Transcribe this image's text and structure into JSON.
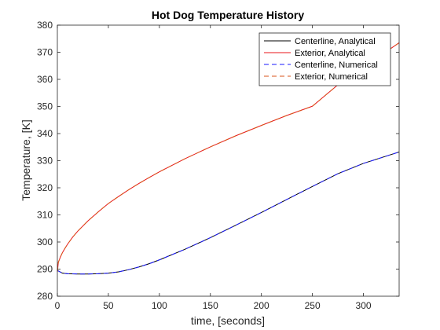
{
  "chart_data": {
    "type": "line",
    "title": "Hot Dog Temperature History",
    "xlabel": "time, [seconds]",
    "ylabel": "Temperature, [K]",
    "xlim": [
      0,
      335
    ],
    "ylim": [
      280,
      380
    ],
    "xticks": [
      0,
      50,
      100,
      150,
      200,
      250,
      300
    ],
    "yticks": [
      280,
      290,
      300,
      310,
      320,
      330,
      340,
      350,
      360,
      370,
      380
    ],
    "grid": false,
    "legend_placement": "top-right",
    "series": [
      {
        "name": "Centerline, Analytical",
        "color": "#000000",
        "dash": "solid",
        "x": [
          0,
          5,
          10,
          20,
          30,
          40,
          50,
          60,
          70,
          80,
          90,
          100,
          125,
          150,
          175,
          200,
          225,
          250,
          275,
          300,
          335
        ],
        "y": [
          289.5,
          288.5,
          288.3,
          288.2,
          288.2,
          288.3,
          288.5,
          289.0,
          289.8,
          290.8,
          292.0,
          293.4,
          297.3,
          301.6,
          306.2,
          310.9,
          315.7,
          320.5,
          325.2,
          329.0,
          333.2
        ]
      },
      {
        "name": "Exterior, Analytical",
        "color": "#e8141a",
        "dash": "solid",
        "x": [
          0,
          1,
          2,
          3,
          5,
          7,
          10,
          15,
          20,
          30,
          40,
          50,
          60,
          70,
          80,
          90,
          100,
          125,
          150,
          175,
          200,
          225,
          250,
          275,
          300,
          335
        ],
        "y": [
          289.0,
          292.6,
          293.5,
          294.5,
          296.1,
          297.4,
          299.2,
          301.8,
          304.0,
          307.8,
          311.1,
          314.2,
          316.8,
          319.3,
          321.6,
          323.8,
          325.9,
          330.7,
          335.1,
          339.2,
          343.0,
          346.7,
          350.1,
          358.0,
          364.5,
          373.5
        ]
      },
      {
        "name": "Centerline, Numerical",
        "color": "#1a1aff",
        "dash": "dashed",
        "x": [
          0,
          5,
          10,
          20,
          30,
          40,
          50,
          60,
          70,
          80,
          90,
          100,
          125,
          150,
          175,
          200,
          225,
          250,
          275,
          300,
          335
        ],
        "y": [
          289.5,
          288.5,
          288.3,
          288.2,
          288.2,
          288.3,
          288.5,
          289.0,
          289.8,
          290.8,
          292.0,
          293.4,
          297.3,
          301.6,
          306.2,
          310.9,
          315.7,
          320.5,
          325.2,
          329.0,
          333.2
        ]
      },
      {
        "name": "Exterior, Numerical",
        "color": "#d95319",
        "dash": "dashed",
        "x": [
          0,
          1,
          2,
          3,
          5,
          7,
          10,
          15,
          20,
          30,
          40,
          50,
          60,
          70,
          80,
          90,
          100,
          125,
          150,
          175,
          200,
          225,
          250,
          275,
          300,
          335
        ],
        "y": [
          289.0,
          292.6,
          293.5,
          294.5,
          296.1,
          297.4,
          299.2,
          301.8,
          304.0,
          307.8,
          311.1,
          314.2,
          316.8,
          319.3,
          321.6,
          323.8,
          325.9,
          330.7,
          335.1,
          339.2,
          343.0,
          346.7,
          350.1,
          358.0,
          364.5,
          373.5
        ]
      }
    ]
  }
}
